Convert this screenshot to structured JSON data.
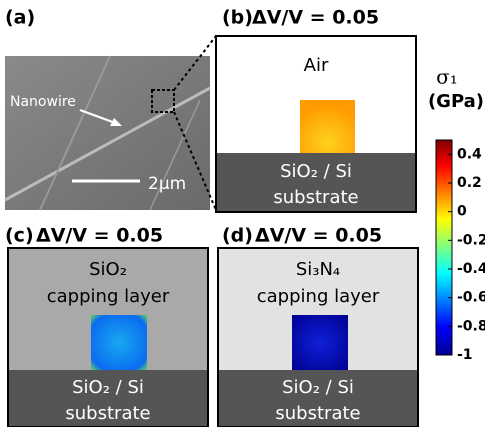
{
  "panels": [
    {
      "label": "(a)",
      "annotation": "Nanowire",
      "scale_bar": "2μm"
    },
    {
      "label": "(b)",
      "condition": "ΔV/V = 0.05",
      "top_region": "Air",
      "substrate_lines": [
        "SiO₂ / Si",
        "substrate"
      ]
    },
    {
      "label": "(c)",
      "condition": "ΔV/V = 0.05",
      "top_region_lines": [
        "SiO₂",
        "capping layer"
      ],
      "substrate_lines": [
        "SiO₂ / Si",
        "substrate"
      ]
    },
    {
      "label": "(d)",
      "condition": "ΔV/V = 0.05",
      "top_region_lines": [
        "Si₃N₄",
        "capping layer"
      ],
      "substrate_lines": [
        "SiO₂ / Si",
        "substrate"
      ]
    }
  ],
  "colorbar": {
    "title": "σ₁",
    "unit": "(GPa)",
    "lim": [
      -1,
      0.5
    ],
    "ticks": [
      0.4,
      0.2,
      0,
      -0.2,
      -0.4,
      -0.6,
      -0.8,
      -1
    ]
  }
}
